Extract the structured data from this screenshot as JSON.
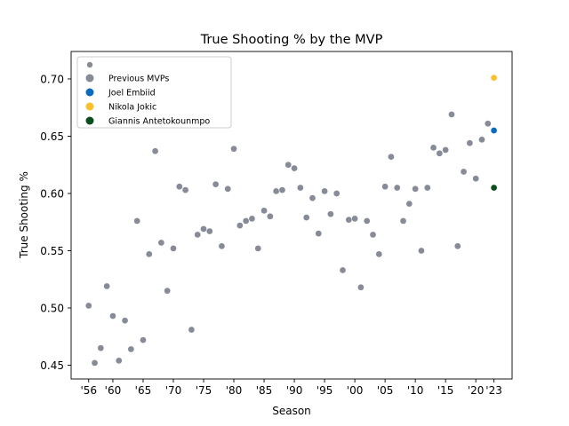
{
  "chart_data": {
    "type": "scatter",
    "title": "True Shooting % by the MVP",
    "xlabel": "Season",
    "ylabel": "True Shooting %",
    "xlim": [
      1953.1,
      2026.0
    ],
    "ylim": [
      0.438,
      0.724
    ],
    "grid": false,
    "legend_placement": "top-left",
    "x_ticks": [
      1956,
      1960,
      1965,
      1970,
      1975,
      1980,
      1985,
      1990,
      1995,
      2000,
      2005,
      2010,
      2015,
      2020,
      2023
    ],
    "x_tick_labels": [
      "'56",
      "'60",
      "'65",
      "'70",
      "'75",
      "'80",
      "'85",
      "'90",
      "'95",
      "'00",
      "'05",
      "'10",
      "'15",
      "'20",
      "'23"
    ],
    "y_ticks": [
      0.45,
      0.5,
      0.55,
      0.6,
      0.65,
      0.7
    ],
    "y_tick_labels": [
      "0.45",
      "0.50",
      "0.55",
      "0.60",
      "0.65",
      "0.70"
    ],
    "series": [
      {
        "name": "Previous MVPs",
        "color": "#878a97",
        "points": [
          [
            1956,
            0.502
          ],
          [
            1957,
            0.452
          ],
          [
            1958,
            0.465
          ],
          [
            1959,
            0.519
          ],
          [
            1960,
            0.493
          ],
          [
            1961,
            0.454
          ],
          [
            1962,
            0.489
          ],
          [
            1963,
            0.464
          ],
          [
            1964,
            0.576
          ],
          [
            1965,
            0.472
          ],
          [
            1966,
            0.547
          ],
          [
            1967,
            0.637
          ],
          [
            1968,
            0.557
          ],
          [
            1969,
            0.515
          ],
          [
            1970,
            0.552
          ],
          [
            1971,
            0.606
          ],
          [
            1972,
            0.603
          ],
          [
            1973,
            0.481
          ],
          [
            1974,
            0.564
          ],
          [
            1975,
            0.569
          ],
          [
            1976,
            0.567
          ],
          [
            1977,
            0.608
          ],
          [
            1978,
            0.554
          ],
          [
            1979,
            0.604
          ],
          [
            1980,
            0.639
          ],
          [
            1981,
            0.572
          ],
          [
            1982,
            0.576
          ],
          [
            1983,
            0.578
          ],
          [
            1984,
            0.552
          ],
          [
            1985,
            0.585
          ],
          [
            1986,
            0.58
          ],
          [
            1987,
            0.602
          ],
          [
            1988,
            0.603
          ],
          [
            1989,
            0.625
          ],
          [
            1990,
            0.622
          ],
          [
            1991,
            0.605
          ],
          [
            1992,
            0.579
          ],
          [
            1993,
            0.596
          ],
          [
            1994,
            0.565
          ],
          [
            1995,
            0.602
          ],
          [
            1996,
            0.582
          ],
          [
            1997,
            0.6
          ],
          [
            1998,
            0.533
          ],
          [
            1999,
            0.577
          ],
          [
            2000,
            0.578
          ],
          [
            2001,
            0.518
          ],
          [
            2002,
            0.576
          ],
          [
            2003,
            0.564
          ],
          [
            2004,
            0.547
          ],
          [
            2005,
            0.606
          ],
          [
            2006,
            0.632
          ],
          [
            2007,
            0.605
          ],
          [
            2008,
            0.576
          ],
          [
            2009,
            0.591
          ],
          [
            2010,
            0.604
          ],
          [
            2011,
            0.55
          ],
          [
            2012,
            0.605
          ],
          [
            2013,
            0.64
          ],
          [
            2014,
            0.635
          ],
          [
            2015,
            0.638
          ],
          [
            2016,
            0.669
          ],
          [
            2017,
            0.554
          ],
          [
            2018,
            0.619
          ],
          [
            2019,
            0.644
          ],
          [
            2020,
            0.613
          ],
          [
            2021,
            0.647
          ],
          [
            2022,
            0.661
          ]
        ]
      },
      {
        "name": "Joel Embiid",
        "color": "#0b6cbf",
        "points": [
          [
            2023,
            0.655
          ]
        ]
      },
      {
        "name": "Nikola Jokic",
        "color": "#fbc02d",
        "points": [
          [
            2023,
            0.701
          ]
        ]
      },
      {
        "name": "Giannis Antetokounmpo",
        "color": "#0b4d1e",
        "points": [
          [
            2023,
            0.605
          ]
        ]
      }
    ]
  }
}
